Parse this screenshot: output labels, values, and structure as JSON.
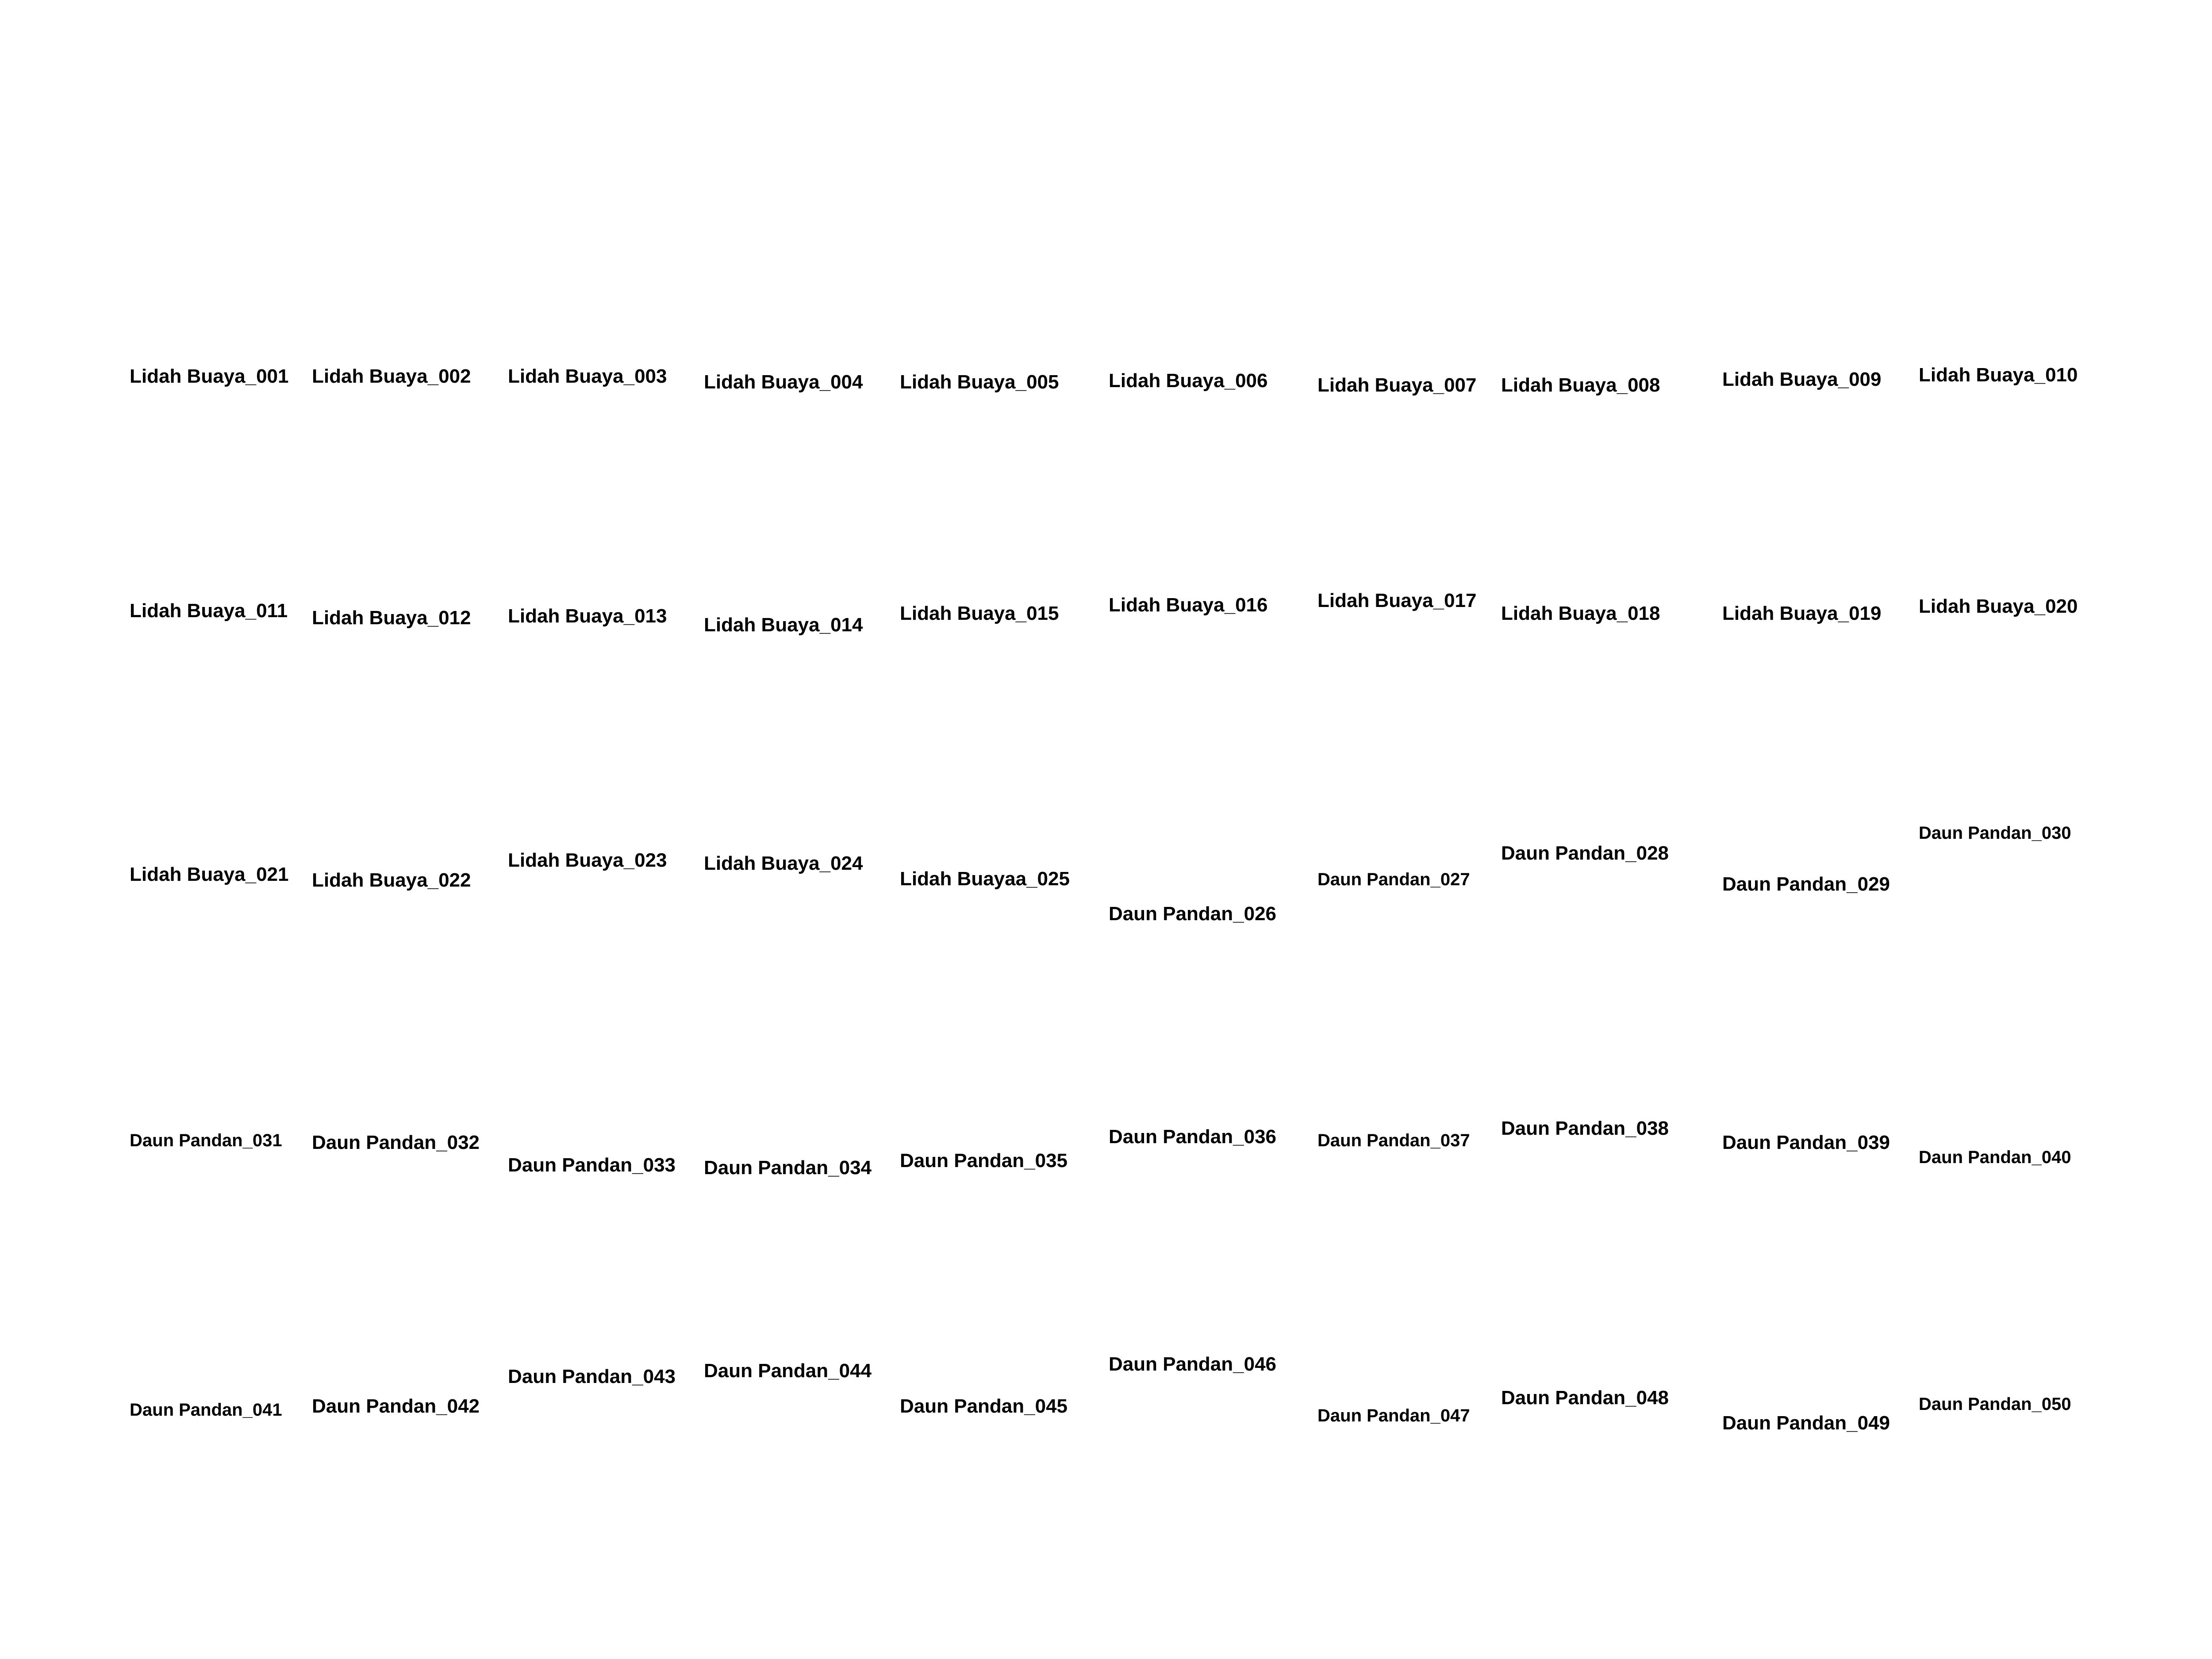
{
  "sheet": {
    "columns": 10,
    "rows": 5,
    "background": "#ffffff",
    "colors": {
      "aloe_fill": "#5f8f1e",
      "aloe_light": "#8bbd35",
      "aloe_dark": "#36560c",
      "aloe_spine": "#c7c08a",
      "pandan_fill": "#1f5a12",
      "pandan_light": "#4f8a26",
      "pandan_tip": "#9aa632",
      "label_text": "#000000"
    }
  },
  "specimens": [
    {
      "label": "Lidah Buaya_001",
      "kind": "aloe-segment"
    },
    {
      "label": "Lidah Buaya_002",
      "kind": "aloe-segment"
    },
    {
      "label": "Lidah Buaya_003",
      "kind": "aloe-segment"
    },
    {
      "label": "Lidah Buaya_004",
      "kind": "aloe-segment"
    },
    {
      "label": "Lidah Buaya_005",
      "kind": "aloe-segment"
    },
    {
      "label": "Lidah Buaya_006",
      "kind": "aloe-segment"
    },
    {
      "label": "Lidah Buaya_007",
      "kind": "aloe-tip"
    },
    {
      "label": "Lidah Buaya_008",
      "kind": "aloe-tip"
    },
    {
      "label": "Lidah Buaya_009",
      "kind": "aloe-tip"
    },
    {
      "label": "Lidah Buaya_010",
      "kind": "aloe-tip"
    },
    {
      "label": "Lidah Buaya_011",
      "kind": "aloe-tip"
    },
    {
      "label": "Lidah Buaya_012",
      "kind": "aloe-segment"
    },
    {
      "label": "Lidah Buaya_013",
      "kind": "aloe-segment"
    },
    {
      "label": "Lidah Buaya_014",
      "kind": "aloe-segment"
    },
    {
      "label": "Lidah Buaya_015",
      "kind": "aloe-segment"
    },
    {
      "label": "Lidah Buaya_016",
      "kind": "aloe-chunk"
    },
    {
      "label": "Lidah Buaya_017",
      "kind": "aloe-chunk"
    },
    {
      "label": "Lidah Buaya_018",
      "kind": "aloe-chunk"
    },
    {
      "label": "Lidah Buaya_019",
      "kind": "aloe-chunk"
    },
    {
      "label": "Lidah Buaya_020",
      "kind": "aloe-segment"
    },
    {
      "label": "Lidah Buaya_021",
      "kind": "aloe-chunk"
    },
    {
      "label": "Lidah Buaya_022",
      "kind": "aloe-chunk"
    },
    {
      "label": "Lidah Buaya_023",
      "kind": "aloe-chunk"
    },
    {
      "label": "Lidah Buaya_024",
      "kind": "aloe-chunk"
    },
    {
      "label": "Lidah Buayaa_025",
      "kind": "aloe-segment"
    },
    {
      "label": "Daun Pandan_026",
      "kind": "pandan-leaf"
    },
    {
      "label": "Daun Pandan_027",
      "kind": "pandan-leaf"
    },
    {
      "label": "Daun Pandan_028",
      "kind": "pandan-leaf"
    },
    {
      "label": "Daun Pandan_029",
      "kind": "pandan-leaf"
    },
    {
      "label": "Daun Pandan_030",
      "kind": "pandan-leaf"
    },
    {
      "label": "Daun Pandan_031",
      "kind": "pandan-leaf"
    },
    {
      "label": "Daun Pandan_032",
      "kind": "pandan-leaf"
    },
    {
      "label": "Daun Pandan_033",
      "kind": "pandan-leaf"
    },
    {
      "label": "Daun Pandan_034",
      "kind": "pandan-leaf"
    },
    {
      "label": "Daun Pandan_035",
      "kind": "pandan-leaf"
    },
    {
      "label": "Daun Pandan_036",
      "kind": "pandan-leaf"
    },
    {
      "label": "Daun Pandan_037",
      "kind": "pandan-leaf"
    },
    {
      "label": "Daun Pandan_038",
      "kind": "pandan-leaf"
    },
    {
      "label": "Daun Pandan_039",
      "kind": "pandan-leaf"
    },
    {
      "label": "Daun Pandan_040",
      "kind": "pandan-leaf"
    },
    {
      "label": "Daun Pandan_041",
      "kind": "pandan-leaf"
    },
    {
      "label": "Daun Pandan_042",
      "kind": "pandan-leaf"
    },
    {
      "label": "Daun Pandan_043",
      "kind": "pandan-leaf"
    },
    {
      "label": "Daun Pandan_044",
      "kind": "pandan-leaf"
    },
    {
      "label": "Daun Pandan_045",
      "kind": "pandan-leaf"
    },
    {
      "label": "Daun Pandan_046",
      "kind": "pandan-leaf"
    },
    {
      "label": "Daun Pandan_047",
      "kind": "pandan-leaf"
    },
    {
      "label": "Daun Pandan_048",
      "kind": "pandan-leaf"
    },
    {
      "label": "Daun Pandan_049",
      "kind": "pandan-leaf"
    },
    {
      "label": "Daun Pandan_050",
      "kind": "pandan-leaf"
    }
  ]
}
